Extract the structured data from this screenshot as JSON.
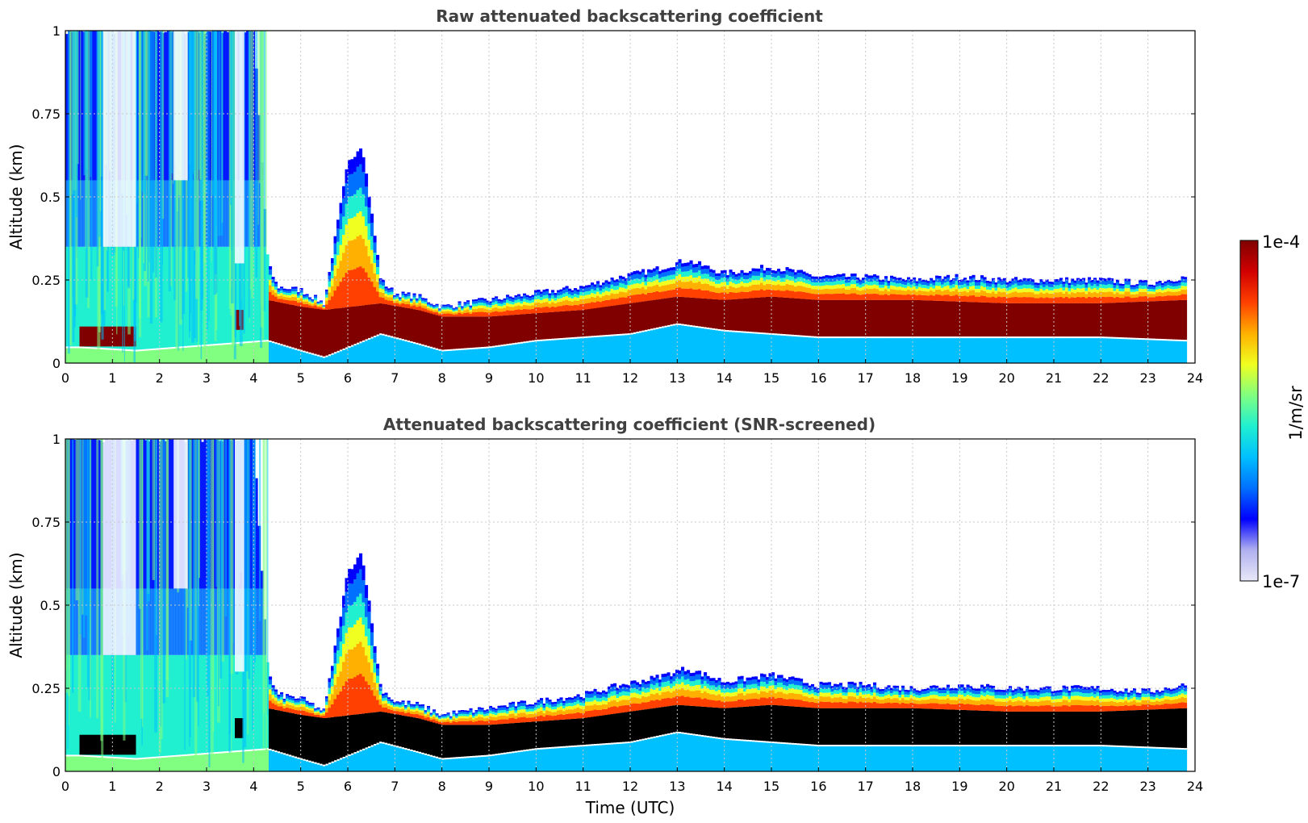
{
  "chart_data": [
    {
      "type": "heatmap",
      "title": "Raw attenuated backscattering coefficient",
      "xlabel": "",
      "ylabel": "Altitude (km)",
      "xlim": [
        0,
        24
      ],
      "ylim": [
        0,
        1
      ],
      "x_ticks": [
        0,
        1,
        2,
        3,
        4,
        5,
        6,
        7,
        8,
        9,
        10,
        11,
        12,
        13,
        14,
        15,
        16,
        17,
        18,
        19,
        20,
        21,
        22,
        23,
        24
      ],
      "y_ticks": [
        0,
        0.25,
        0.5,
        0.75,
        1
      ],
      "y_tick_labels": [
        "0",
        "0.25",
        "0.5",
        "0.75",
        "1"
      ],
      "grid": true,
      "aerosol_layer_top_km": [
        [
          0,
          1.0
        ],
        [
          0.5,
          1.0
        ],
        [
          1.0,
          1.0
        ],
        [
          1.5,
          1.0
        ],
        [
          2.0,
          1.0
        ],
        [
          2.5,
          1.0
        ],
        [
          3.0,
          1.0
        ],
        [
          3.5,
          1.0
        ],
        [
          4.0,
          1.0
        ],
        [
          4.3,
          0.3
        ],
        [
          4.5,
          0.23
        ],
        [
          5.0,
          0.22
        ],
        [
          5.5,
          0.18
        ],
        [
          6.0,
          0.6
        ],
        [
          6.3,
          0.66
        ],
        [
          6.7,
          0.25
        ],
        [
          7.0,
          0.21
        ],
        [
          7.5,
          0.2
        ],
        [
          8.0,
          0.17
        ],
        [
          8.5,
          0.18
        ],
        [
          9.0,
          0.19
        ],
        [
          10.0,
          0.21
        ],
        [
          11.0,
          0.23
        ],
        [
          11.8,
          0.26
        ],
        [
          12.5,
          0.28
        ],
        [
          13.2,
          0.31
        ],
        [
          14.0,
          0.27
        ],
        [
          15.0,
          0.29
        ],
        [
          16.0,
          0.26
        ],
        [
          17.0,
          0.26
        ],
        [
          18.0,
          0.25
        ],
        [
          19.0,
          0.26
        ],
        [
          20.0,
          0.25
        ],
        [
          21.0,
          0.25
        ],
        [
          22.0,
          0.25
        ],
        [
          23.0,
          0.24
        ],
        [
          23.8,
          0.26
        ]
      ],
      "dense_core_bottom_km": [
        [
          0.3,
          0.05
        ],
        [
          1.5,
          0.04
        ],
        [
          4.3,
          0.07
        ],
        [
          5.0,
          0.04
        ],
        [
          5.5,
          0.02
        ],
        [
          6.7,
          0.09
        ],
        [
          7.5,
          0.06
        ],
        [
          8.0,
          0.04
        ],
        [
          9.0,
          0.05
        ],
        [
          10.0,
          0.07
        ],
        [
          11.0,
          0.08
        ],
        [
          12.0,
          0.09
        ],
        [
          13.0,
          0.12
        ],
        [
          14.0,
          0.1
        ],
        [
          15.0,
          0.09
        ],
        [
          16.0,
          0.08
        ],
        [
          18.0,
          0.08
        ],
        [
          20.0,
          0.08
        ],
        [
          22.0,
          0.08
        ],
        [
          23.8,
          0.07
        ]
      ],
      "dense_core_top_km": [
        [
          0.3,
          0.11
        ],
        [
          1.5,
          0.1
        ],
        [
          4.3,
          0.19
        ],
        [
          5.0,
          0.17
        ],
        [
          5.5,
          0.16
        ],
        [
          6.7,
          0.18
        ],
        [
          7.5,
          0.16
        ],
        [
          8.0,
          0.14
        ],
        [
          9.0,
          0.14
        ],
        [
          10.0,
          0.15
        ],
        [
          11.0,
          0.16
        ],
        [
          12.0,
          0.18
        ],
        [
          13.0,
          0.2
        ],
        [
          14.0,
          0.19
        ],
        [
          15.0,
          0.2
        ],
        [
          16.0,
          0.19
        ],
        [
          18.0,
          0.19
        ],
        [
          20.0,
          0.18
        ],
        [
          22.0,
          0.18
        ],
        [
          23.8,
          0.19
        ]
      ]
    },
    {
      "type": "heatmap",
      "title": "Attenuated backscattering coefficient (SNR-screened)",
      "xlabel": "Time (UTC)",
      "ylabel": "Altitude (km)",
      "xlim": [
        0,
        24
      ],
      "ylim": [
        0,
        1
      ],
      "x_ticks": [
        0,
        1,
        2,
        3,
        4,
        5,
        6,
        7,
        8,
        9,
        10,
        11,
        12,
        13,
        14,
        15,
        16,
        17,
        18,
        19,
        20,
        21,
        22,
        23,
        24
      ],
      "y_ticks": [
        0,
        0.25,
        0.5,
        0.75,
        1
      ],
      "y_tick_labels": [
        "0",
        "0.25",
        "0.5",
        "0.75",
        "1"
      ],
      "grid": true,
      "masked_color": "#000000"
    }
  ],
  "colorbar": {
    "label": "1/m/sr",
    "min_label": "1e-7",
    "max_label": "1e-4",
    "min_value": 1e-07,
    "max_value": 0.0001,
    "scale": "log",
    "colormap": [
      "#e8e8f8",
      "#b0b0f0",
      "#0000ff",
      "#0070ff",
      "#00c0ff",
      "#20f0d0",
      "#80ff80",
      "#f0ff20",
      "#ffb000",
      "#ff4000",
      "#d00000",
      "#800000"
    ]
  }
}
